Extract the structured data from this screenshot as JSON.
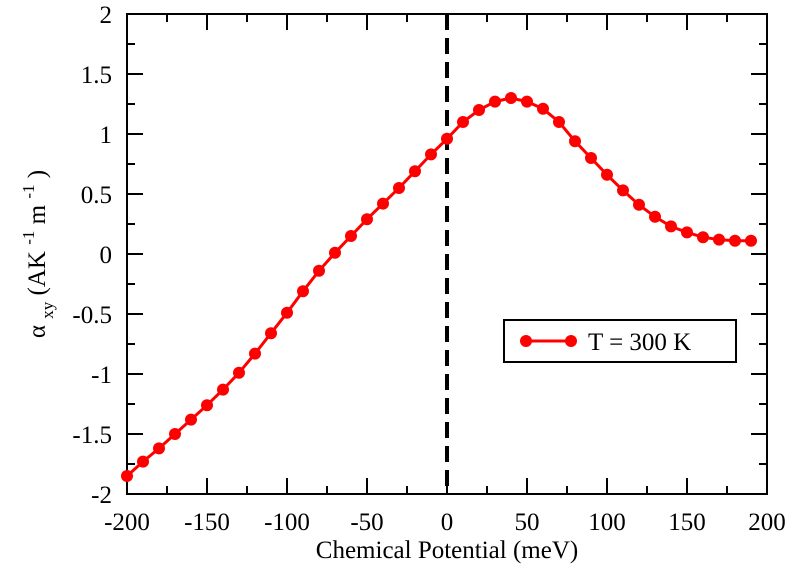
{
  "chart_data": {
    "type": "line",
    "title": "",
    "xlabel": "Chemical Potential  (meV)",
    "ylabel": {
      "alpha": "α",
      "alpha_sub": "xy",
      "open": " (AK",
      "sup1": "-1",
      "mid": " m",
      "sup2": "-1",
      "close": ")"
    },
    "xlim": [
      -200,
      200
    ],
    "ylim": [
      -2,
      2
    ],
    "x_ticks": [
      "-200",
      "-150",
      "-100",
      "-50",
      "0",
      "50",
      "100",
      "150",
      "200"
    ],
    "x_tick_values": [
      -200,
      -150,
      -100,
      -50,
      0,
      50,
      100,
      150,
      200
    ],
    "y_ticks": [
      "2",
      "1.5",
      "1",
      "0.5",
      "0",
      "-0.5",
      "-1",
      "-1.5",
      "-2"
    ],
    "y_tick_values": [
      2,
      1.5,
      1,
      0.5,
      0,
      -0.5,
      -1,
      -1.5,
      -2
    ],
    "reference_line": {
      "x": 0,
      "style": "dashed",
      "color": "#000000"
    },
    "legend": {
      "position": "right",
      "label": "T = 300 K"
    },
    "series": [
      {
        "name": "T = 300 K",
        "color": "#ff0000",
        "marker": "circle",
        "x": [
          -200,
          -190,
          -180,
          -170,
          -160,
          -150,
          -140,
          -130,
          -120,
          -110,
          -100,
          -90,
          -80,
          -70,
          -60,
          -50,
          -40,
          -30,
          -20,
          -10,
          0,
          10,
          20,
          30,
          40,
          50,
          60,
          70,
          80,
          90,
          100,
          110,
          120,
          130,
          140,
          150,
          160,
          170,
          180,
          190
        ],
        "y": [
          -1.85,
          -1.73,
          -1.62,
          -1.5,
          -1.38,
          -1.26,
          -1.13,
          -0.99,
          -0.83,
          -0.66,
          -0.49,
          -0.31,
          -0.14,
          0.01,
          0.15,
          0.29,
          0.42,
          0.55,
          0.69,
          0.83,
          0.96,
          1.1,
          1.2,
          1.27,
          1.3,
          1.27,
          1.21,
          1.1,
          0.94,
          0.8,
          0.66,
          0.53,
          0.41,
          0.31,
          0.23,
          0.18,
          0.14,
          0.12,
          0.11,
          0.11
        ]
      }
    ]
  }
}
